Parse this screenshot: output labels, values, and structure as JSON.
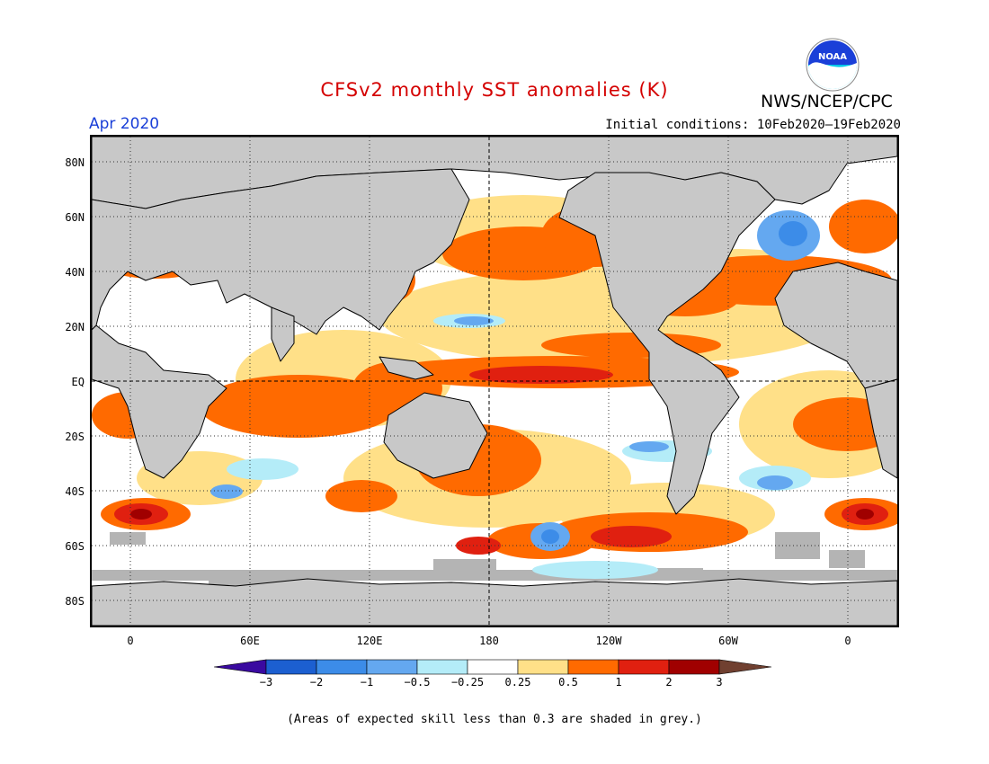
{
  "title": "CFSv2 monthly SST anomalies (K)",
  "month": "Apr 2020",
  "initial_conditions": "Initial conditions: 10Feb2020–19Feb2020",
  "agency": "NWS/NCEP/CPC",
  "logo": {
    "text": "NOAA",
    "icon": "noaa-logo-icon",
    "colors": [
      "#1a3fd8",
      "#00c8e8",
      "#ffffff"
    ]
  },
  "note": "(Areas of expected skill less than 0.3 are shaded in grey.)",
  "map": {
    "land_color": "#c8c8c8",
    "ocean_neutral_color": "#ffffff",
    "low_skill_color": "#b4b4b4",
    "y_ticks": [
      "80N",
      "60N",
      "40N",
      "20N",
      "EQ",
      "20S",
      "40S",
      "60S",
      "80S"
    ],
    "x_ticks": [
      "0",
      "60E",
      "120E",
      "180",
      "120W",
      "60W",
      "0"
    ]
  },
  "colorbar": {
    "labels": [
      "−3",
      "−2",
      "−1",
      "−0.5",
      "−0.25",
      "0.25",
      "0.5",
      "1",
      "2",
      "3"
    ],
    "colors": [
      "#3a0aa0",
      "#1c5fd0",
      "#3c8ce8",
      "#64a8f0",
      "#b4ecf8",
      "#ffffff",
      "#ffe088",
      "#ff6a00",
      "#e02010",
      "#a00000",
      "#704030"
    ]
  }
}
